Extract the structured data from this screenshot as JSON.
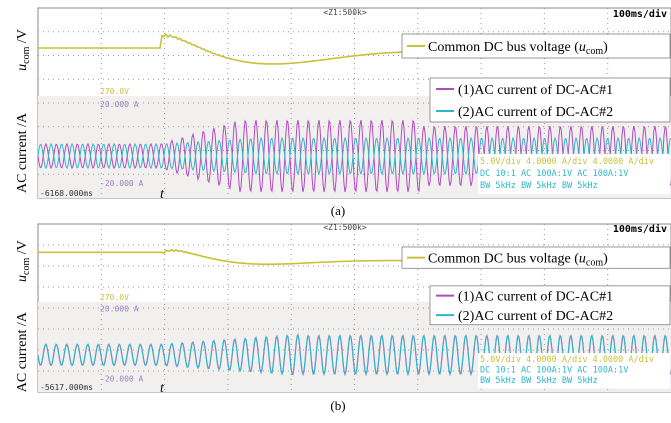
{
  "panels": [
    {
      "caption": "(a)",
      "voltage_axis": {
        "symbol": "u",
        "subscript": "com",
        "unit": " /V"
      },
      "current_axis": "AC current /A",
      "time_symbol": "t",
      "legend_voltage": {
        "text": "Common DC bus voltage (",
        "symbol": "u",
        "subscript": "com",
        "close": ")"
      },
      "legend_currents": [
        "(1)AC current of DC-AC#1",
        "(2)AC current of DC-AC#2"
      ],
      "scope": {
        "zoom": "<Z1:500k>",
        "timebase": "100ms/div",
        "offset": "-6168.000ms",
        "volt_ref": "270.0V",
        "cur_top": "20.000 A",
        "cur_bottom": "-20.000 A",
        "settings": [
          "5.0V/div 4.0000 A/div 4.0000 A/div",
          "DC 10:1 AC 100A:1V AC 100A:1V",
          "BW 5kHz BW 5kHz BW 5kHz"
        ]
      }
    },
    {
      "caption": "(b)",
      "voltage_axis": {
        "symbol": "u",
        "subscript": "com",
        "unit": " /V"
      },
      "current_axis": "AC current /A",
      "time_symbol": "t",
      "legend_voltage": {
        "text": "Common DC bus voltage (",
        "symbol": "u",
        "subscript": "com",
        "close": ")"
      },
      "legend_currents": [
        "(1)AC current of DC-AC#1",
        "(2)AC current of DC-AC#2"
      ],
      "scope": {
        "zoom": "<Z1:500k>",
        "timebase": "100ms/div",
        "offset": "-5617.000ms",
        "volt_ref": "270.0V",
        "cur_top": "20.000 A",
        "cur_bottom": "-20.000 A",
        "settings": [
          "5.0V/div 4.0000 A/div 4.0000 A/div",
          "DC 10:1 AC 100A:1V AC 100A:1V",
          "BW 5kHz BW 5kHz BW 5kHz"
        ]
      }
    }
  ]
}
